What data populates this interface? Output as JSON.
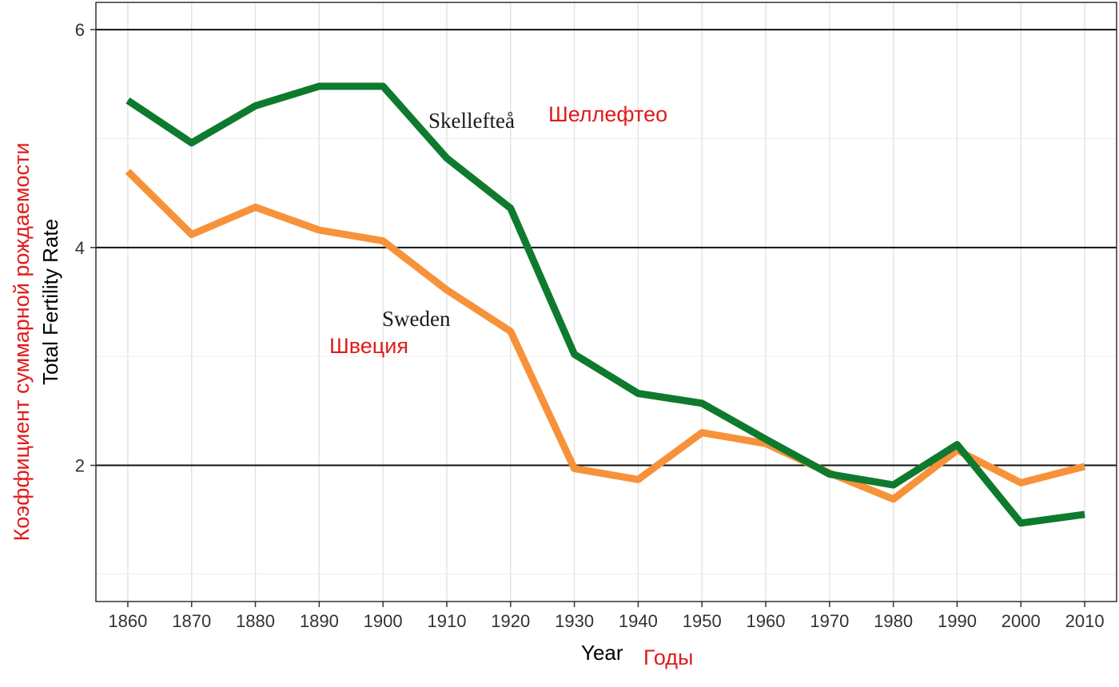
{
  "chart_data": {
    "type": "line",
    "x": [
      1860,
      1870,
      1880,
      1890,
      1900,
      1910,
      1920,
      1930,
      1940,
      1950,
      1960,
      1970,
      1980,
      1990,
      2000,
      2010
    ],
    "series": [
      {
        "name": "Skellefteå",
        "translation": "Шеллефтео",
        "color": "#0e7a2e",
        "values": [
          5.35,
          4.96,
          5.3,
          5.48,
          5.48,
          4.82,
          4.36,
          3.02,
          2.66,
          2.57,
          2.24,
          1.92,
          1.82,
          2.19,
          1.47,
          1.55
        ]
      },
      {
        "name": "Sweden",
        "translation": "Швеция",
        "color": "#f7923a",
        "values": [
          4.7,
          4.12,
          4.37,
          4.16,
          4.06,
          3.61,
          3.23,
          1.97,
          1.87,
          2.3,
          2.2,
          1.93,
          1.69,
          2.14,
          1.84,
          1.99
        ]
      }
    ],
    "xlabel": "Year",
    "xlabel_translation": "Годы",
    "ylabel": "Total Fertility Rate",
    "ylabel_translation": "Коэффициент суммарной рождаемости",
    "yticks": [
      2,
      4,
      6
    ],
    "xlim": [
      1855,
      2015
    ],
    "ylim": [
      0.75,
      6.25
    ],
    "grid": true,
    "legend": "none"
  }
}
